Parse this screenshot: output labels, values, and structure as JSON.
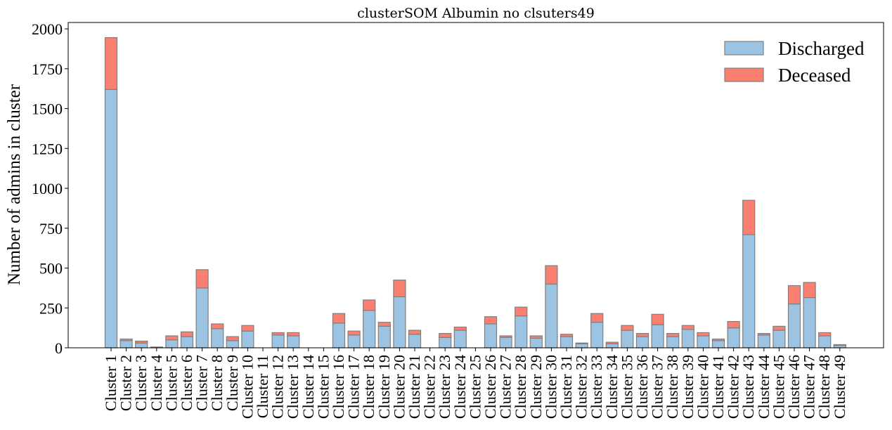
{
  "chart_data": {
    "type": "bar",
    "stacked": true,
    "title": "clusterSOM Albumin no clsuters49",
    "xlabel": "",
    "ylabel": "Number of admins in cluster",
    "ylim": [
      0,
      2040
    ],
    "yticks": [
      0,
      250,
      500,
      750,
      1000,
      1250,
      1500,
      1750,
      2000
    ],
    "legend_position": "top-right",
    "categories": [
      "Cluster 1",
      "Cluster 2",
      "Cluster 3",
      "Cluster 4",
      "Cluster 5",
      "Cluster 6",
      "Cluster 7",
      "Cluster 8",
      "Cluster 9",
      "Cluster 10",
      "Cluster 11",
      "Cluster 12",
      "Cluster 13",
      "Cluster 14",
      "Cluster 15",
      "Cluster 16",
      "Cluster 17",
      "Cluster 18",
      "Cluster 19",
      "Cluster 20",
      "Cluster 21",
      "Cluster 22",
      "Cluster 23",
      "Cluster 24",
      "Cluster 25",
      "Cluster 26",
      "Cluster 27",
      "Cluster 28",
      "Cluster 29",
      "Cluster 30",
      "Cluster 31",
      "Cluster 32",
      "Cluster 33",
      "Cluster 34",
      "Cluster 35",
      "Cluster 36",
      "Cluster 37",
      "Cluster 38",
      "Cluster 39",
      "Cluster 40",
      "Cluster 41",
      "Cluster 42",
      "Cluster 43",
      "Cluster 44",
      "Cluster 45",
      "Cluster 46",
      "Cluster 47",
      "Cluster 48",
      "Cluster 49"
    ],
    "series": [
      {
        "name": "Discharged",
        "color": "#9dc3e3",
        "values": [
          1620,
          45,
          30,
          3,
          50,
          70,
          375,
          120,
          45,
          105,
          0,
          80,
          75,
          0,
          0,
          155,
          80,
          235,
          135,
          320,
          85,
          0,
          65,
          110,
          0,
          150,
          65,
          200,
          60,
          400,
          70,
          25,
          160,
          25,
          110,
          70,
          145,
          70,
          115,
          75,
          45,
          125,
          710,
          80,
          110,
          275,
          315,
          75,
          15
        ]
      },
      {
        "name": "Deceased",
        "color": "#fa8072",
        "values": [
          325,
          10,
          12,
          2,
          25,
          30,
          115,
          30,
          25,
          35,
          0,
          15,
          20,
          0,
          0,
          60,
          25,
          65,
          25,
          105,
          25,
          0,
          25,
          20,
          0,
          45,
          10,
          55,
          15,
          115,
          15,
          5,
          55,
          10,
          30,
          20,
          65,
          20,
          25,
          20,
          10,
          40,
          215,
          10,
          25,
          115,
          95,
          20,
          5
        ]
      }
    ]
  }
}
